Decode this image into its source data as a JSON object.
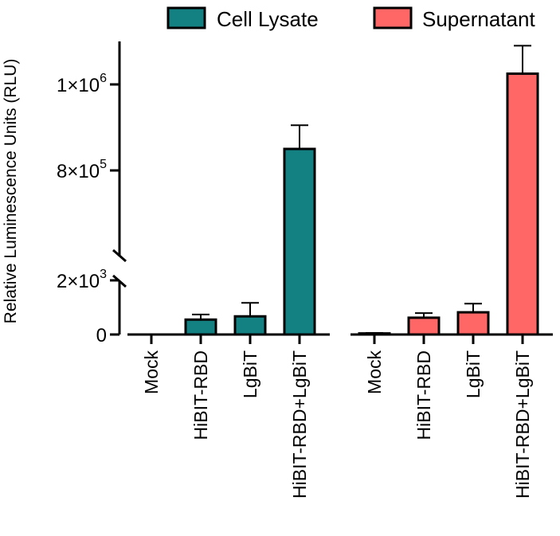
{
  "chart_data": {
    "type": "bar",
    "ylabel": "Relative Luminescence Units (RLU)",
    "y_axis_break": true,
    "ylim_lower": [
      0,
      2000
    ],
    "ylim_upper": [
      600000,
      1100000
    ],
    "y_ticks": [
      {
        "value": 0,
        "base": "0",
        "exp": ""
      },
      {
        "value": 2000,
        "base": "2×10",
        "exp": "3"
      },
      {
        "value": 800000,
        "base": "8×10",
        "exp": "5"
      },
      {
        "value": 1000000,
        "base": "1×10",
        "exp": "6"
      }
    ],
    "legend_position": "top",
    "series": [
      {
        "name": "Cell Lysate",
        "color": "#138182",
        "categories": [
          "Mock",
          "HiBIT-RBD",
          "LgBiT",
          "HiBIT-RBD+LgBiT"
        ],
        "values": [
          0,
          550,
          670,
          850000
        ],
        "errors": [
          0,
          190,
          500,
          55000
        ]
      },
      {
        "name": "Supernatant",
        "color": "#ff6666",
        "categories": [
          "Mock",
          "HiBIT-RBD",
          "LgBiT",
          "HiBIT-RBD+LgBiT"
        ],
        "values": [
          40,
          620,
          820,
          1025000
        ],
        "errors": [
          20,
          170,
          320,
          65000
        ]
      }
    ],
    "grid": false
  }
}
